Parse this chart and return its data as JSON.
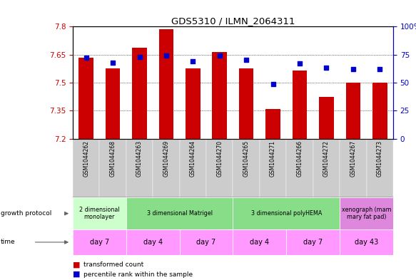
{
  "title": "GDS5310 / ILMN_2064311",
  "samples": [
    "GSM1044262",
    "GSM1044268",
    "GSM1044263",
    "GSM1044269",
    "GSM1044264",
    "GSM1044270",
    "GSM1044265",
    "GSM1044271",
    "GSM1044266",
    "GSM1044272",
    "GSM1044267",
    "GSM1044273"
  ],
  "bar_values": [
    7.635,
    7.575,
    7.685,
    7.785,
    7.575,
    7.665,
    7.575,
    7.36,
    7.565,
    7.425,
    7.5,
    7.5
  ],
  "percentile_values": [
    72,
    68,
    73,
    74,
    69,
    74,
    70,
    49,
    67,
    63,
    62,
    62
  ],
  "y_min": 7.2,
  "y_max": 7.8,
  "y_ticks": [
    7.2,
    7.35,
    7.5,
    7.65,
    7.8
  ],
  "right_y_ticks": [
    0,
    25,
    50,
    75,
    100
  ],
  "right_y_labels": [
    "0",
    "25",
    "50",
    "75",
    "100%"
  ],
  "bar_color": "#cc0000",
  "dot_color": "#0000cc",
  "left_tick_color": "#cc0000",
  "right_tick_color": "#0000cc",
  "sample_bg_color": "#cccccc",
  "growth_protocol_groups": [
    {
      "label": "2 dimensional\nmonolayer",
      "cols": [
        0,
        1
      ],
      "color": "#ccffcc"
    },
    {
      "label": "3 dimensional Matrigel",
      "cols": [
        2,
        3,
        4,
        5
      ],
      "color": "#88dd88"
    },
    {
      "label": "3 dimensional polyHEMA",
      "cols": [
        6,
        7,
        8,
        9
      ],
      "color": "#88dd88"
    },
    {
      "label": "xenograph (mam\nmary fat pad)",
      "cols": [
        10,
        11
      ],
      "color": "#dd88dd"
    }
  ],
  "time_groups": [
    {
      "label": "day 7",
      "cols": [
        0,
        1
      ],
      "color": "#ff99ff"
    },
    {
      "label": "day 4",
      "cols": [
        2,
        3
      ],
      "color": "#ff99ff"
    },
    {
      "label": "day 7",
      "cols": [
        4,
        5
      ],
      "color": "#ff99ff"
    },
    {
      "label": "day 4",
      "cols": [
        6,
        7
      ],
      "color": "#ff99ff"
    },
    {
      "label": "day 7",
      "cols": [
        8,
        9
      ],
      "color": "#ff99ff"
    },
    {
      "label": "day 43",
      "cols": [
        10,
        11
      ],
      "color": "#ff99ff"
    }
  ],
  "legend_items": [
    {
      "label": "transformed count",
      "color": "#cc0000",
      "marker": "s"
    },
    {
      "label": "percentile rank within the sample",
      "color": "#0000cc",
      "marker": "s"
    }
  ]
}
